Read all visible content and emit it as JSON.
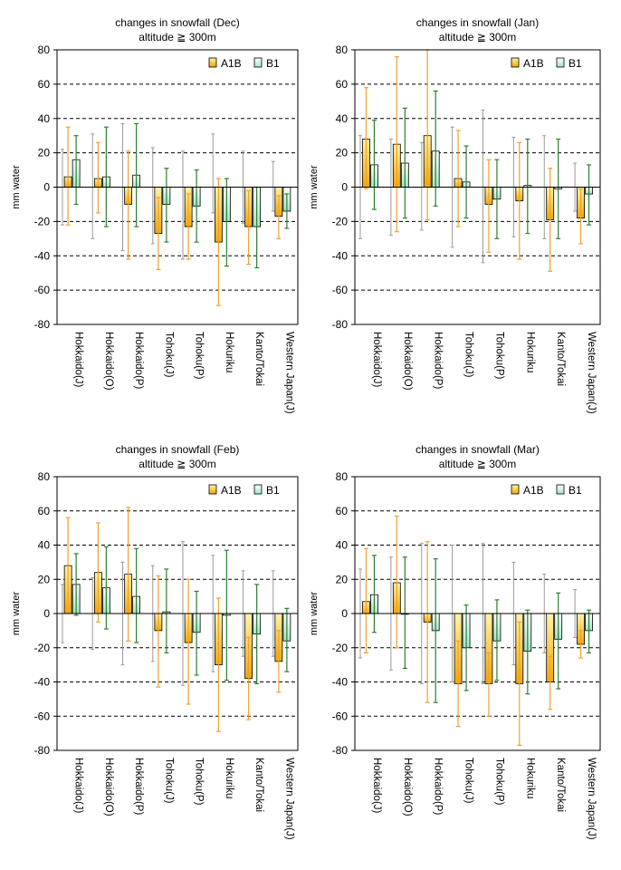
{
  "colors": {
    "a1b_top": "#fff3a8",
    "a1b_bottom": "#f2a800",
    "b1_top": "#ffffff",
    "b1_bottom": "#9fe6c4",
    "err_a1b": "#f0a22e",
    "err_b1": "#2f7f2f",
    "err_grey": "#9a9a9a",
    "grid": "#000000"
  },
  "chart_data": [
    {
      "type": "bar",
      "title": "changes in snowfall (Dec)",
      "subtitle": "altitude ≧ 300m",
      "ylabel": "mm water",
      "ylim": [
        -80,
        80
      ],
      "yticks": [
        -80,
        -60,
        -40,
        -20,
        0,
        20,
        40,
        60,
        80
      ],
      "categories": [
        "Hokkaido(J)",
        "Hokkaido(O)",
        "Hokkaido(P)",
        "Tohoku(J)",
        "Tohoku(P)",
        "Hokuriku",
        "Kanto/Tokai",
        "Western Japan(J)"
      ],
      "series": [
        {
          "name": "A1B",
          "values": [
            6,
            5,
            -10,
            -27,
            -23,
            -32,
            -23,
            -17
          ],
          "err_low": [
            -22,
            -15,
            -42,
            -48,
            -42,
            -69,
            -45,
            -30
          ],
          "err_high": [
            35,
            26,
            21,
            -6,
            -4,
            5,
            -2,
            -5
          ]
        },
        {
          "name": "B1",
          "values": [
            16,
            6,
            7,
            -10,
            -11,
            -20,
            -23,
            -14
          ],
          "err_low": [
            -10,
            -23,
            -23,
            -32,
            -32,
            -46,
            -47,
            -24
          ],
          "err_high": [
            30,
            35,
            37,
            11,
            10,
            5,
            0,
            -4
          ]
        }
      ],
      "grey_ranges": [
        [
          -22,
          22
        ],
        [
          -30,
          31
        ],
        [
          -37,
          37
        ],
        [
          -33,
          23
        ],
        [
          -42,
          21
        ],
        [
          -15,
          31
        ],
        [
          -21,
          21
        ],
        [
          -14,
          15
        ]
      ]
    },
    {
      "type": "bar",
      "title": "changes in snowfall (Jan)",
      "subtitle": "altitude ≧ 300m",
      "ylabel": "mm water",
      "ylim": [
        -80,
        80
      ],
      "yticks": [
        -80,
        -60,
        -40,
        -20,
        0,
        20,
        40,
        60,
        80
      ],
      "categories": [
        "Hokkaido(J)",
        "Hokkaido(O)",
        "Hokkaido(P)",
        "Tohoku(J)",
        "Tohoku(P)",
        "Hokuriku",
        "Kanto/Tokai",
        "Western Japan(J)"
      ],
      "series": [
        {
          "name": "A1B",
          "values": [
            28,
            25,
            30,
            5,
            -10,
            -8,
            -19,
            -18
          ],
          "err_low": [
            -1,
            -26,
            -19,
            -23,
            -38,
            -42,
            -49,
            -33
          ],
          "err_high": [
            58,
            76,
            80,
            33,
            16,
            26,
            11,
            -1
          ]
        },
        {
          "name": "B1",
          "values": [
            13,
            14,
            21,
            3,
            -7,
            1,
            -1,
            -4
          ],
          "err_low": [
            -13,
            -18,
            -11,
            -18,
            -30,
            -27,
            -30,
            -22
          ],
          "err_high": [
            39,
            46,
            56,
            24,
            16,
            28,
            28,
            13
          ]
        }
      ],
      "grey_ranges": [
        [
          -30,
          30
        ],
        [
          -28,
          28
        ],
        [
          -25,
          26
        ],
        [
          -35,
          35
        ],
        [
          -44,
          45
        ],
        [
          -29,
          29
        ],
        [
          -30,
          30
        ],
        [
          -14,
          14
        ]
      ]
    },
    {
      "type": "bar",
      "title": "changes in snowfall (Feb)",
      "subtitle": "altitude ≧ 300m",
      "ylabel": "mm water",
      "ylim": [
        -80,
        80
      ],
      "yticks": [
        -80,
        -60,
        -40,
        -20,
        0,
        20,
        40,
        60,
        80
      ],
      "categories": [
        "Hokkaido(J)",
        "Hokkaido(O)",
        "Hokkaido(P)",
        "Tohoku(J)",
        "Tohoku(P)",
        "Hokuriku",
        "Kanto/Tokai",
        "Western Japan(J)"
      ],
      "series": [
        {
          "name": "A1B",
          "values": [
            28,
            24,
            23,
            -10,
            -17,
            -30,
            -38,
            -28
          ],
          "err_low": [
            0,
            -5,
            -16,
            -43,
            -53,
            -69,
            -62,
            -46
          ],
          "err_high": [
            56,
            53,
            62,
            22,
            20,
            9,
            -14,
            -10
          ]
        },
        {
          "name": "B1",
          "values": [
            17,
            15,
            10,
            1,
            -11,
            -1,
            -12,
            -16
          ],
          "err_low": [
            -1,
            -9,
            -17,
            -23,
            -36,
            -39,
            -41,
            -34
          ],
          "err_high": [
            35,
            39,
            38,
            26,
            13,
            37,
            17,
            3
          ]
        }
      ],
      "grey_ranges": [
        [
          -17,
          17
        ],
        [
          -21,
          21
        ],
        [
          -30,
          30
        ],
        [
          -28,
          28
        ],
        [
          -42,
          42
        ],
        [
          -34,
          34
        ],
        [
          -25,
          25
        ],
        [
          -25,
          25
        ]
      ]
    },
    {
      "type": "bar",
      "title": "changes in snowfall (Mar)",
      "subtitle": "altitude ≧ 300m",
      "ylabel": "mm water",
      "ylim": [
        -80,
        80
      ],
      "yticks": [
        -80,
        -60,
        -40,
        -20,
        0,
        20,
        40,
        60,
        80
      ],
      "categories": [
        "Hokkaido(J)",
        "Hokkaido(O)",
        "Hokkaido(P)",
        "Tohoku(J)",
        "Tohoku(P)",
        "Hokuriku",
        "Kanto/Tokai",
        "Western Japan(J)"
      ],
      "series": [
        {
          "name": "A1B",
          "values": [
            7,
            18,
            -5,
            -41,
            -41,
            -41,
            -40,
            -18
          ],
          "err_low": [
            -23,
            -20,
            -52,
            -66,
            -60,
            -77,
            -56,
            -26
          ],
          "err_high": [
            38,
            57,
            42,
            -16,
            -23,
            -5,
            -25,
            -10
          ]
        },
        {
          "name": "B1",
          "values": [
            11,
            0,
            -10,
            -20,
            -16,
            -22,
            -15,
            -10
          ],
          "err_low": [
            -11,
            -32,
            -52,
            -45,
            -39,
            -47,
            -44,
            -23
          ],
          "err_high": [
            34,
            33,
            32,
            5,
            8,
            2,
            12,
            2
          ]
        }
      ],
      "grey_ranges": [
        [
          -26,
          26
        ],
        [
          -33,
          33
        ],
        [
          -41,
          41
        ],
        [
          -40,
          40
        ],
        [
          -41,
          41
        ],
        [
          -30,
          30
        ],
        [
          -23,
          23
        ],
        [
          -14,
          14
        ]
      ]
    }
  ]
}
